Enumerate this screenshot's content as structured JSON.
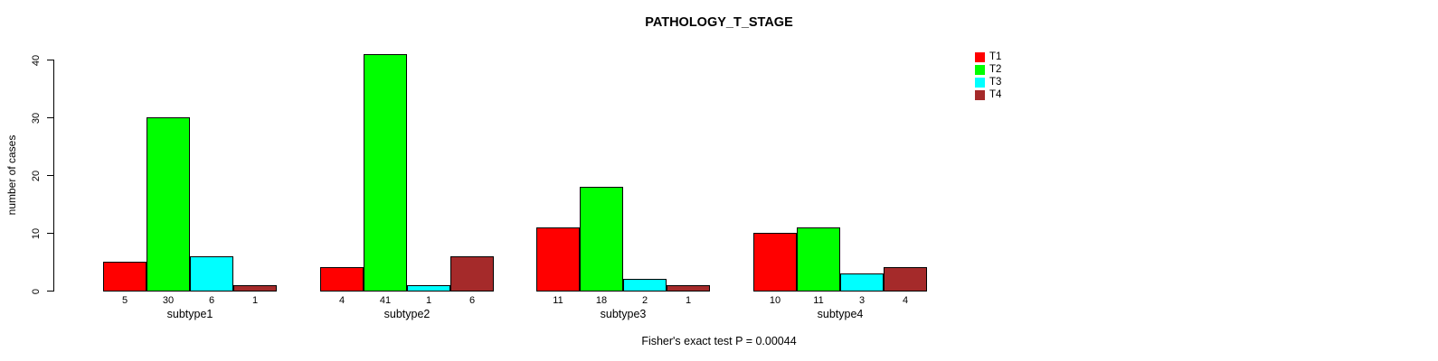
{
  "title": "PATHOLOGY_T_STAGE",
  "footer": "Fisher's exact test P = 0.00044",
  "y_axis": {
    "label": "number of cases"
  },
  "chart_data": {
    "type": "bar",
    "title": "PATHOLOGY_T_STAGE",
    "categories": [
      "subtype1",
      "subtype2",
      "subtype3",
      "subtype4"
    ],
    "series": [
      {
        "name": "T1",
        "color": "#ff0000",
        "values": [
          5,
          4,
          11,
          10
        ]
      },
      {
        "name": "T2",
        "color": "#00ff00",
        "values": [
          30,
          41,
          18,
          11
        ]
      },
      {
        "name": "T3",
        "color": "#00ffff",
        "values": [
          6,
          1,
          2,
          3
        ]
      },
      {
        "name": "T4",
        "color": "#a52a2a",
        "values": [
          1,
          6,
          1,
          4
        ]
      }
    ],
    "bar_value_labels": [
      [
        5,
        30,
        6,
        1
      ],
      [
        4,
        41,
        1,
        6
      ],
      [
        11,
        18,
        2,
        1
      ],
      [
        10,
        11,
        3,
        4
      ]
    ],
    "xlabel": "",
    "ylabel": "number of cases",
    "ylim": [
      0,
      41
    ],
    "yticks": [
      0,
      10,
      20,
      30,
      40
    ],
    "grid": false,
    "legend_position": "top-right",
    "bar_border_color": "#000000",
    "annotation": "Fisher's exact test P = 0.00044"
  }
}
